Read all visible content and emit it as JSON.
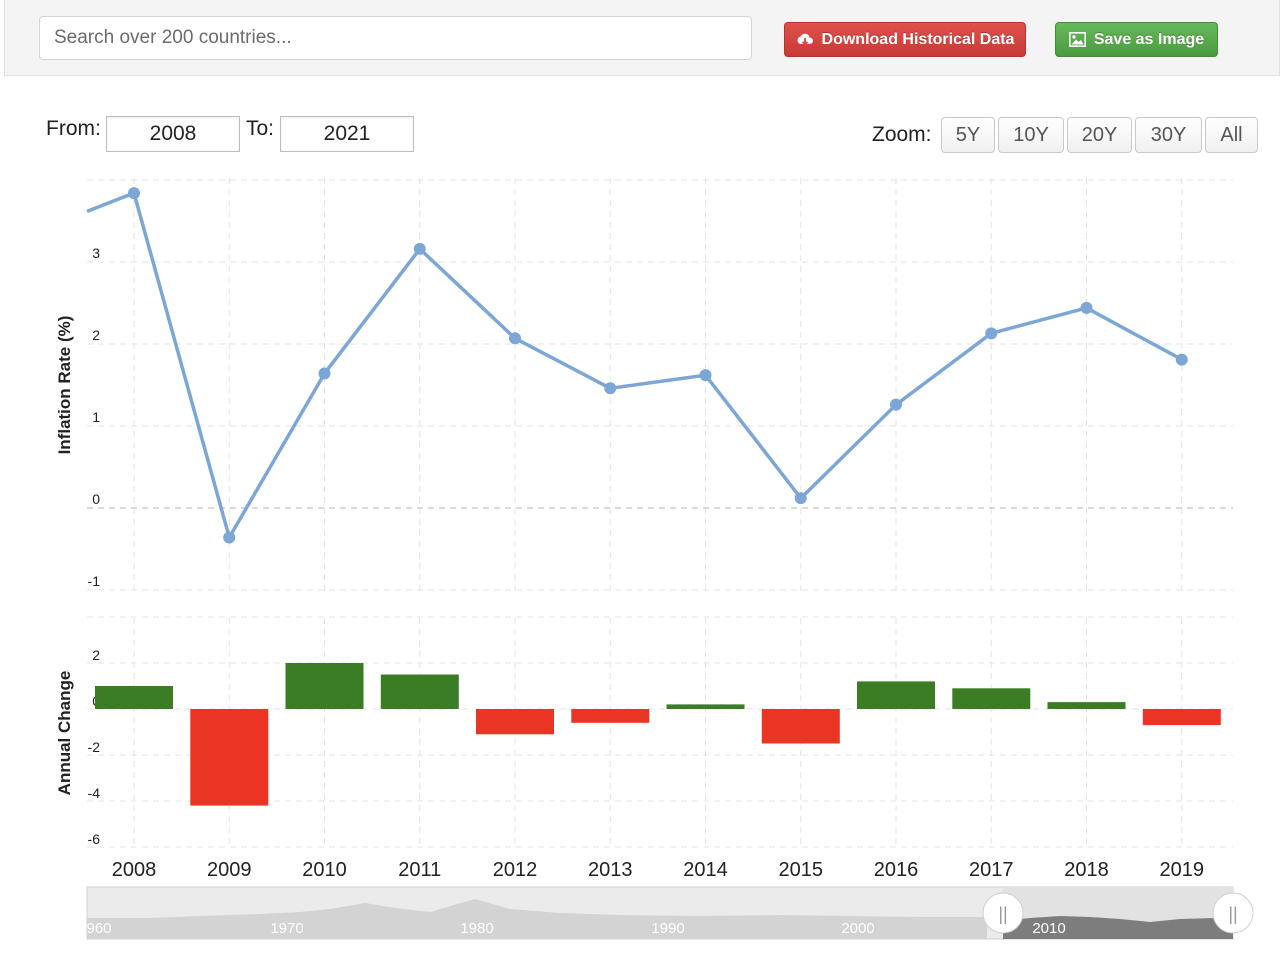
{
  "search": {
    "placeholder": "Search over 200 countries..."
  },
  "buttons": {
    "download": {
      "label": "Download Historical Data",
      "icon": "cloud-download-icon",
      "color": "#d9443f"
    },
    "save": {
      "label": "Save as Image",
      "icon": "image-icon",
      "color": "#5cb350"
    }
  },
  "range": {
    "from_label": "From:",
    "from_value": "2008",
    "to_label": "To:",
    "to_value": "2021"
  },
  "zoom": {
    "label": "Zoom:",
    "options": [
      "5Y",
      "10Y",
      "20Y",
      "30Y",
      "All"
    ]
  },
  "navigator": {
    "labels": [
      "960",
      "1970",
      "1980",
      "1990",
      "2000",
      "2010"
    ],
    "handle_glyph": "||"
  },
  "chart_data": [
    {
      "type": "line",
      "ylabel": "Inflation Rate (%)",
      "x": [
        "2008",
        "2009",
        "2010",
        "2011",
        "2012",
        "2013",
        "2014",
        "2015",
        "2016",
        "2017",
        "2018",
        "2019"
      ],
      "series": [
        {
          "values": [
            3.84,
            -0.36,
            1.64,
            3.16,
            2.07,
            1.46,
            1.62,
            0.12,
            1.26,
            2.13,
            2.44,
            1.81
          ],
          "color": "#7ba6d6"
        }
      ],
      "y_ticks": [
        "3",
        "2",
        "1",
        "0",
        "-1"
      ],
      "ylim": [
        -1,
        4
      ],
      "grid": true
    },
    {
      "type": "bar",
      "ylabel": "Annual Change",
      "categories": [
        "2008",
        "2009",
        "2010",
        "2011",
        "2012",
        "2013",
        "2014",
        "2015",
        "2016",
        "2017",
        "2018",
        "2019"
      ],
      "values": [
        1.0,
        -4.2,
        2.0,
        1.5,
        -1.1,
        -0.6,
        0.2,
        -1.5,
        1.2,
        0.9,
        0.3,
        -0.7
      ],
      "y_ticks": [
        "2",
        "0",
        "-2",
        "-4",
        "-6"
      ],
      "ylim": [
        -6,
        4
      ],
      "positive_color": "#3a7d24",
      "negative_color": "#ea3525",
      "grid": true
    }
  ]
}
